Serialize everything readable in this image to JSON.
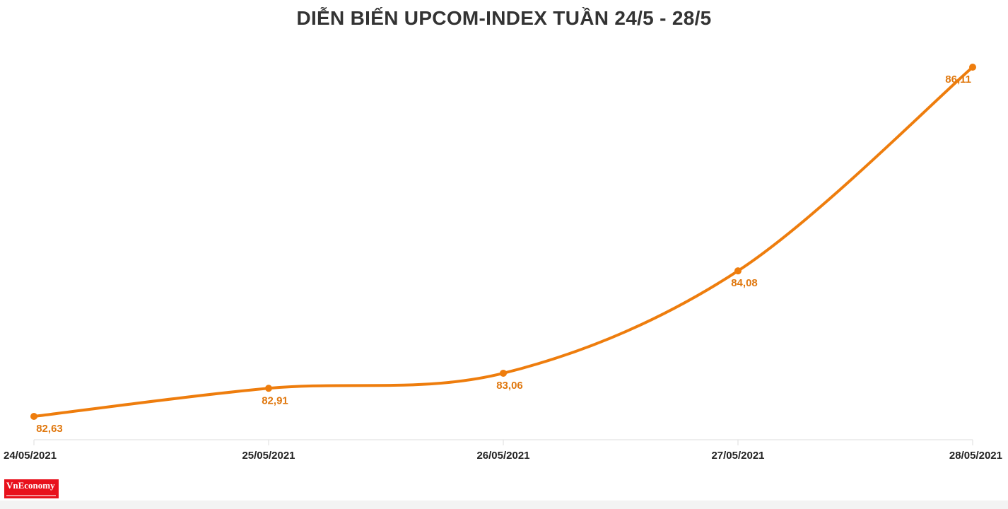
{
  "colors": {
    "line": "#ee7d0d",
    "label": "#e0780f",
    "axis": "#dddddd",
    "title": "#333333",
    "logo": "#e8111c"
  },
  "logo": {
    "text": "VnEconomy"
  },
  "chart_data": {
    "type": "line",
    "title": "DIỄN BIẾN UPCOM-INDEX TUẦN 24/5 - 28/5",
    "xlabel": "",
    "ylabel": "",
    "categories": [
      "24/05/2021",
      "25/05/2021",
      "26/05/2021",
      "27/05/2021",
      "28/05/2021"
    ],
    "values": [
      82.63,
      82.91,
      83.06,
      84.08,
      86.11
    ],
    "value_labels": [
      "82,63",
      "82,91",
      "83,06",
      "84,08",
      "86,11"
    ],
    "grid": false,
    "legend": "none",
    "smooth": true
  }
}
